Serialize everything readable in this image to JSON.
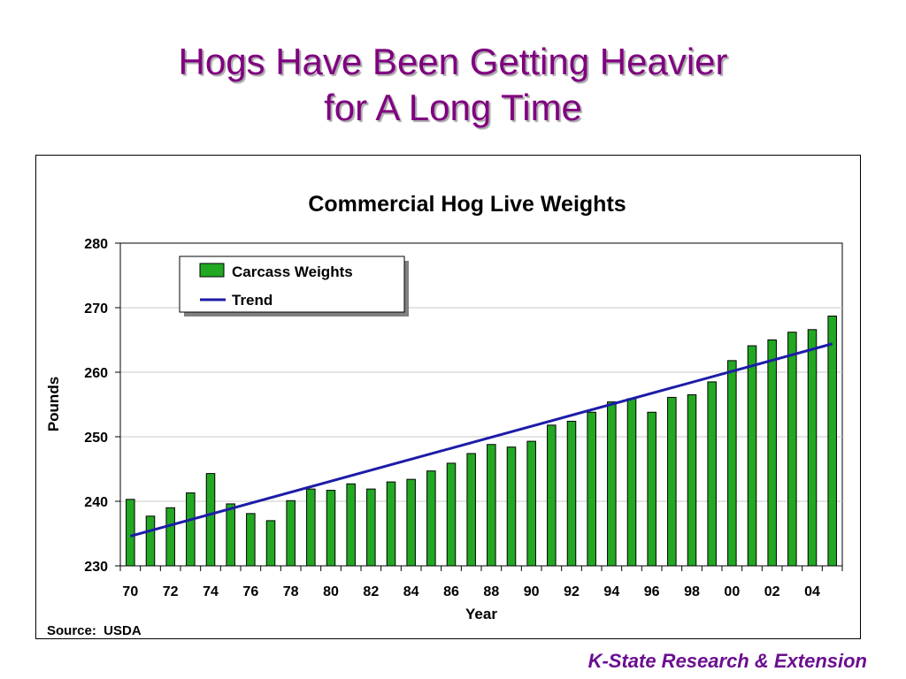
{
  "slide": {
    "title_line1": "Hogs Have Been Getting Heavier",
    "title_line2": "for A Long Time",
    "footer": "K-State Research & Extension",
    "title_color": "#800080",
    "footer_color": "#6b0f8f"
  },
  "chart_data": {
    "type": "bar",
    "title": "Commercial Hog Live Weights",
    "xlabel": "Year",
    "ylabel": "Pounds",
    "source": "Source:  USDA",
    "ylim": [
      230,
      280
    ],
    "yticks": [
      230,
      240,
      250,
      260,
      270,
      280
    ],
    "grid": true,
    "legend_position": "top-left",
    "bar_color": "#22a822",
    "trend_color": "#1c1ca8",
    "categories": [
      "70",
      "71",
      "72",
      "73",
      "74",
      "75",
      "76",
      "77",
      "78",
      "79",
      "80",
      "81",
      "82",
      "83",
      "84",
      "85",
      "86",
      "87",
      "88",
      "89",
      "90",
      "91",
      "92",
      "93",
      "94",
      "95",
      "96",
      "97",
      "98",
      "99",
      "00",
      "01",
      "02",
      "03",
      "04",
      "05"
    ],
    "category_labels": [
      "70",
      "",
      "72",
      "",
      "74",
      "",
      "76",
      "",
      "78",
      "",
      "80",
      "",
      "82",
      "",
      "84",
      "",
      "86",
      "",
      "88",
      "",
      "90",
      "",
      "92",
      "",
      "94",
      "",
      "96",
      "",
      "98",
      "",
      "00",
      "",
      "02",
      "",
      "04",
      ""
    ],
    "series": [
      {
        "name": "Carcass Weights",
        "values": [
          240.3,
          237.7,
          239.0,
          241.3,
          244.3,
          239.6,
          238.1,
          237.0,
          240.1,
          241.9,
          241.7,
          242.7,
          241.9,
          243.0,
          243.4,
          244.7,
          245.9,
          247.4,
          248.8,
          248.4,
          249.3,
          251.8,
          252.4,
          253.8,
          255.4,
          255.9,
          253.8,
          256.1,
          256.5,
          258.5,
          261.8,
          264.1,
          265.0,
          266.2,
          266.6,
          268.7
        ]
      }
    ],
    "trend": {
      "name": "Trend",
      "start": 234.6,
      "end": 264.4
    }
  }
}
